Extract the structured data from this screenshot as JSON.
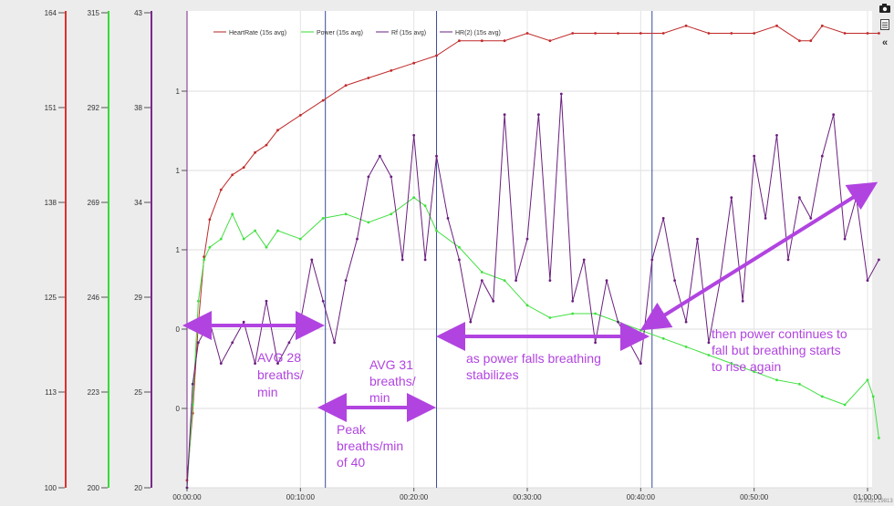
{
  "chart_data": {
    "type": "line",
    "x_unit": "elapsed time (hh:mm:ss)",
    "x_ticks": [
      "00:00:00",
      "00:10:00",
      "00:20:00",
      "00:30:00",
      "00:40:00",
      "00:50:00",
      "01:00:00"
    ],
    "x_range_min": [
      0,
      61
    ],
    "axes": [
      {
        "id": "hr",
        "color": "#e03030",
        "range": [
          100,
          164
        ],
        "ticks": [
          "100",
          "113",
          "125",
          "138",
          "151",
          "164"
        ]
      },
      {
        "id": "power",
        "color": "#33dd33",
        "range": [
          200,
          315
        ],
        "ticks": [
          "200",
          "223",
          "246",
          "269",
          "292",
          "315"
        ]
      },
      {
        "id": "rf",
        "color": "#7a2a8a",
        "range": [
          20,
          43
        ],
        "ticks": [
          "20",
          "25",
          "29",
          "34",
          "38",
          "43"
        ]
      },
      {
        "id": "hr2",
        "color": "#7a2a8a",
        "range": [
          0,
          2.6
        ],
        "ticks": [
          "0",
          "0",
          "1",
          "1",
          "1"
        ]
      }
    ],
    "legend": [
      {
        "label": "HeartRate (15s avg)",
        "color": "#b02020"
      },
      {
        "label": "Power (15s avg)",
        "color": "#33dd33"
      },
      {
        "label": "Rf (15s avg)",
        "color": "#6a2080"
      },
      {
        "label": "HR(2) (15s avg)",
        "color": "#6a2080"
      }
    ],
    "legend_position": "top-left",
    "grid": true,
    "markers_min": [
      12.2,
      22,
      41
    ],
    "series": [
      {
        "name": "HeartRate (15s avg)",
        "axis": "hr",
        "x": [
          0,
          0.5,
          1,
          1.5,
          2,
          3,
          4,
          5,
          6,
          7,
          8,
          10,
          12,
          14,
          16,
          18,
          20,
          22,
          24,
          26,
          28,
          30,
          32,
          34,
          36,
          38,
          40,
          42,
          44,
          46,
          48,
          50,
          52,
          54,
          55,
          56,
          58,
          60,
          61
        ],
        "y": [
          101,
          110,
          122,
          131,
          136,
          140,
          142,
          143,
          145,
          146,
          148,
          150,
          152,
          154,
          155,
          156,
          157,
          158,
          160,
          160,
          160,
          161,
          160,
          161,
          161,
          161,
          161,
          161,
          162,
          161,
          161,
          161,
          162,
          160,
          160,
          162,
          161,
          161,
          161
        ]
      },
      {
        "name": "Power (15s avg)",
        "axis": "power",
        "x": [
          0,
          0.5,
          1,
          1.5,
          2,
          3,
          4,
          5,
          6,
          7,
          8,
          10,
          12,
          14,
          16,
          18,
          20,
          21,
          22,
          24,
          26,
          28,
          30,
          32,
          34,
          36,
          38,
          40,
          42,
          44,
          46,
          48,
          50,
          52,
          54,
          56,
          58,
          60,
          60.5,
          61
        ],
        "y": [
          200,
          220,
          245,
          255,
          258,
          260,
          266,
          260,
          262,
          258,
          262,
          260,
          265,
          266,
          264,
          266,
          270,
          268,
          262,
          258,
          252,
          250,
          244,
          241,
          242,
          242,
          240,
          238,
          236,
          234,
          232,
          230,
          228,
          226,
          225,
          222,
          220,
          226,
          222,
          212
        ]
      },
      {
        "name": "Rf (15s avg)",
        "axis": "rf",
        "x": [
          0,
          0.5,
          1,
          2,
          3,
          4,
          5,
          6,
          7,
          8,
          9,
          10,
          11,
          12,
          13,
          14,
          15,
          16,
          17,
          18,
          19,
          20,
          21,
          22,
          23,
          24,
          25,
          26,
          27,
          28,
          29,
          30,
          31,
          32,
          33,
          34,
          35,
          36,
          37,
          38,
          39,
          40,
          41,
          42,
          43,
          44,
          45,
          46,
          47,
          48,
          49,
          50,
          51,
          52,
          53,
          54,
          55,
          56,
          57,
          58,
          59,
          60,
          61
        ],
        "y": [
          20,
          25,
          27,
          28,
          26,
          27,
          28,
          26,
          29,
          26,
          27,
          28,
          31,
          29,
          27,
          30,
          32,
          35,
          36,
          35,
          31,
          37,
          31,
          36,
          33,
          31,
          28,
          30,
          29,
          38,
          30,
          32,
          38,
          30,
          39,
          29,
          31,
          27,
          30,
          28,
          27,
          26,
          31,
          33,
          30,
          28,
          32,
          27,
          30,
          34,
          29,
          36,
          33,
          37,
          31,
          34,
          33,
          36,
          38,
          32,
          34,
          30,
          31
        ]
      }
    ]
  },
  "annotations": {
    "avg28": [
      "AVG 28",
      "breaths/",
      "min"
    ],
    "avg31": [
      "AVG 31",
      "breaths/",
      "min"
    ],
    "peak": [
      "Peak",
      "breaths/min",
      "of 40"
    ],
    "power_falls": [
      "as power falls breathing",
      "stabilizes"
    ],
    "continues": [
      "then power continues to",
      "fall but breathing starts",
      "to rise again"
    ]
  },
  "version_text": "1.3.6251.19813",
  "toolbar": {
    "camera_icon": "camera-icon",
    "document_icon": "document-icon",
    "collapse_label": "«"
  }
}
